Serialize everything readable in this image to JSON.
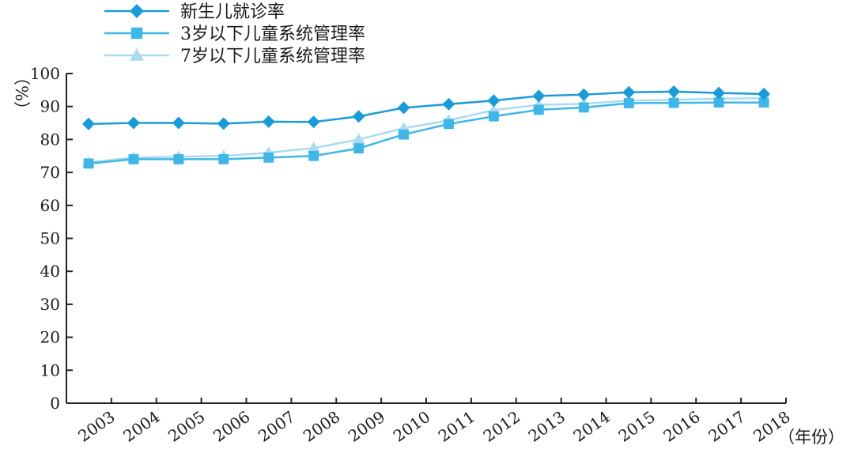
{
  "chart_data": {
    "type": "line",
    "title": "",
    "ylabel": "（%）",
    "xlabel": "（年份）",
    "ylim": [
      0,
      100
    ],
    "yticks": [
      0,
      10,
      20,
      30,
      40,
      50,
      60,
      70,
      80,
      90,
      100
    ],
    "grid": false,
    "legend_position": "top-left",
    "x": [
      "2003",
      "2004",
      "2005",
      "2006",
      "2007",
      "2008",
      "2009",
      "2010",
      "2011",
      "2012",
      "2013",
      "2014",
      "2015",
      "2016",
      "2017",
      "2018"
    ],
    "series": [
      {
        "name": "新生儿就诊率",
        "marker": "diamond",
        "color": "#1a9bd7",
        "values": [
          84.7,
          85.0,
          85.0,
          84.8,
          85.4,
          85.3,
          87.0,
          89.6,
          90.7,
          91.8,
          93.2,
          93.6,
          94.3,
          94.5,
          94.1,
          93.8
        ]
      },
      {
        "name": "3岁以下儿童系统管理率",
        "marker": "square",
        "color": "#3fb6e6",
        "values": [
          72.7,
          74.0,
          74.0,
          74.0,
          74.5,
          75.0,
          77.3,
          81.5,
          84.7,
          87.0,
          89.0,
          89.7,
          91.0,
          91.1,
          91.2,
          91.2
        ]
      },
      {
        "name": "7岁以下儿童系统管理率",
        "marker": "triangle",
        "color": "#a9dcf3",
        "values": [
          73.0,
          74.5,
          74.8,
          75.0,
          76.0,
          77.4,
          80.0,
          83.4,
          85.8,
          88.9,
          90.5,
          90.8,
          91.8,
          92.0,
          92.4,
          92.5
        ]
      }
    ]
  }
}
